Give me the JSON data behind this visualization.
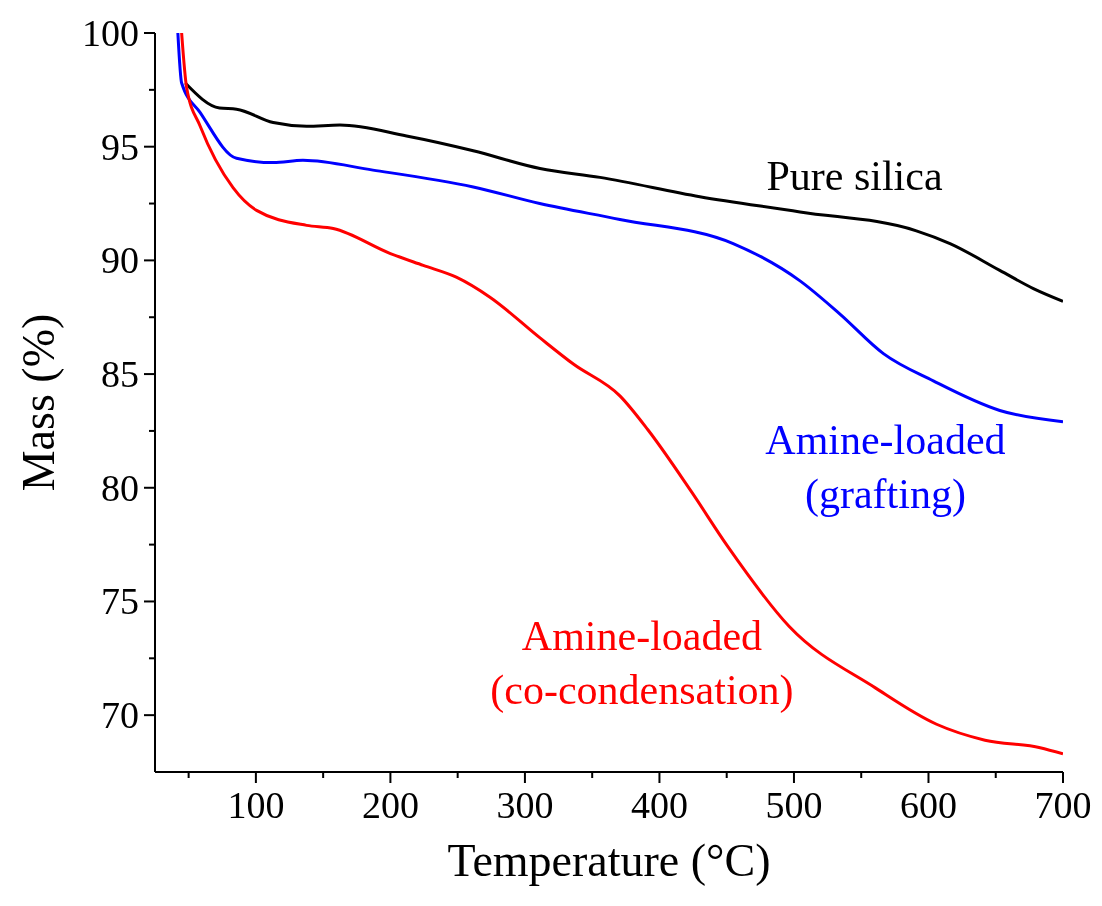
{
  "chart_data": {
    "type": "line",
    "xlabel": "Temperature (°C)",
    "ylabel": "Mass (%)",
    "xlim": [
      25,
      700
    ],
    "ylim": [
      67.5,
      100
    ],
    "xticks": [
      {
        "value": 50,
        "label": null
      },
      100,
      {
        "value": 150,
        "label": null
      },
      200,
      {
        "value": 250,
        "label": null
      },
      300,
      {
        "value": 350,
        "label": null
      },
      400,
      {
        "value": 450,
        "label": null
      },
      500,
      {
        "value": 550,
        "label": null
      },
      600,
      {
        "value": 650,
        "label": null
      },
      700
    ],
    "yticks": [
      70,
      {
        "value": 72.5,
        "label": null
      },
      75,
      {
        "value": 77.5,
        "label": null
      },
      80,
      {
        "value": 82.5,
        "label": null
      },
      85,
      {
        "value": 87.5,
        "label": null
      },
      90,
      {
        "value": 92.5,
        "label": null
      },
      95,
      {
        "value": 97.5,
        "label": null
      },
      100
    ],
    "grid": false,
    "legend": false,
    "marker": "none",
    "line_style": "solid",
    "series": [
      {
        "name": "Pure silica",
        "color": "#000000",
        "x": [
          47.5,
          73,
          85.6,
          112.9,
          137.7,
          162.5,
          212,
          261.6,
          311.2,
          355.8,
          430,
          504.5,
          591,
          616,
          653,
          678,
          700
        ],
        "values": [
          97.8,
          96.7,
          96.65,
          96.06,
          95.9,
          95.95,
          95.47,
          94.82,
          94.04,
          93.65,
          92.8,
          92.13,
          91.3,
          90.74,
          89.56,
          88.76,
          88.2
        ]
      },
      {
        "name": "Amine-loaded\n(grafting)",
        "color": "#0000ff",
        "x": [
          42,
          44.8,
          58.6,
          85.6,
          113,
          135,
          187,
          261.6,
          311,
          370.6,
          454.8,
          504.5,
          534,
          566.5,
          603.6,
          653,
          700
        ],
        "values": [
          100,
          97.8,
          96.5,
          94.49,
          94.3,
          94.4,
          93.97,
          93.23,
          92.5,
          91.8,
          90.74,
          89.1,
          87.65,
          85.9,
          84.7,
          83.4,
          82.9
        ]
      },
      {
        "name": "Amine-loaded\n(co-condensation)",
        "color": "#ff0000",
        "x": [
          44.8,
          48.5,
          58.6,
          83,
          100.5,
          137.7,
          157.5,
          200,
          224.4,
          249,
          274,
          311,
          336,
          370.6,
          391.4,
          423.5,
          451,
          496.5,
          560.5,
          606,
          642,
          683,
          700
        ],
        "values": [
          100,
          97.6,
          95.9,
          93.2,
          92.2,
          91.54,
          91.4,
          90.3,
          89.78,
          89.26,
          88.38,
          86.6,
          85.44,
          84.04,
          82.55,
          79.85,
          77.4,
          73.9,
          71.2,
          69.6,
          68.9,
          68.57,
          68.3
        ]
      }
    ]
  }
}
